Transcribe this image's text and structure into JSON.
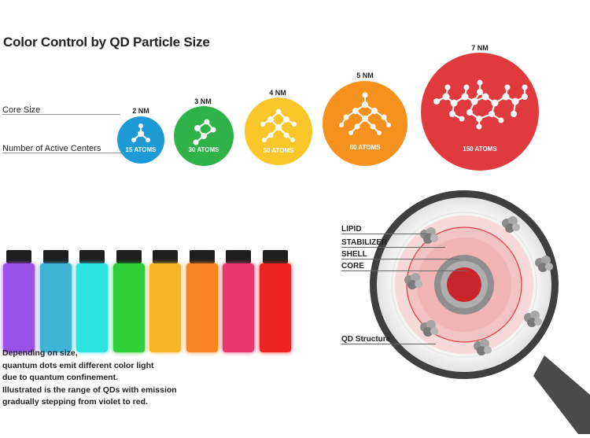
{
  "title": "Color Control by QD Particle Size",
  "row_labels": {
    "core_size": "Core Size",
    "active_centers": "Number of Active Centers"
  },
  "particles": [
    {
      "size": "2 NM",
      "atoms": "15 ATOMS",
      "color": "#1e9bd7"
    },
    {
      "size": "3 NM",
      "atoms": "30 ATOMS",
      "color": "#2fb24a"
    },
    {
      "size": "4 NM",
      "atoms": "50 ATOMS",
      "color": "#fbc62a"
    },
    {
      "size": "5 NM",
      "atoms": "80 ATOMS",
      "color": "#f5921e"
    },
    {
      "size": "7 NM",
      "atoms": "150 ATOMS",
      "color": "#e03a3e"
    }
  ],
  "vials": [
    {
      "color": "#9a52e6"
    },
    {
      "color": "#3eb4d8"
    },
    {
      "color": "#2ce4e0"
    },
    {
      "color": "#2fcf3a"
    },
    {
      "color": "#f7b625"
    },
    {
      "color": "#f78321"
    },
    {
      "color": "#ea3772"
    },
    {
      "color": "#ee2323"
    }
  ],
  "description": [
    "Depending on size,",
    "quantum dots emit different color light",
    "due to quantum confinement.",
    "Illustrated is the range of QDs with emission",
    "gradually stepping from violet to red."
  ],
  "structure": {
    "labels": [
      "LIPID",
      "STABILIZER",
      "SHELL",
      "CORE"
    ],
    "caption": "QD Structure"
  }
}
